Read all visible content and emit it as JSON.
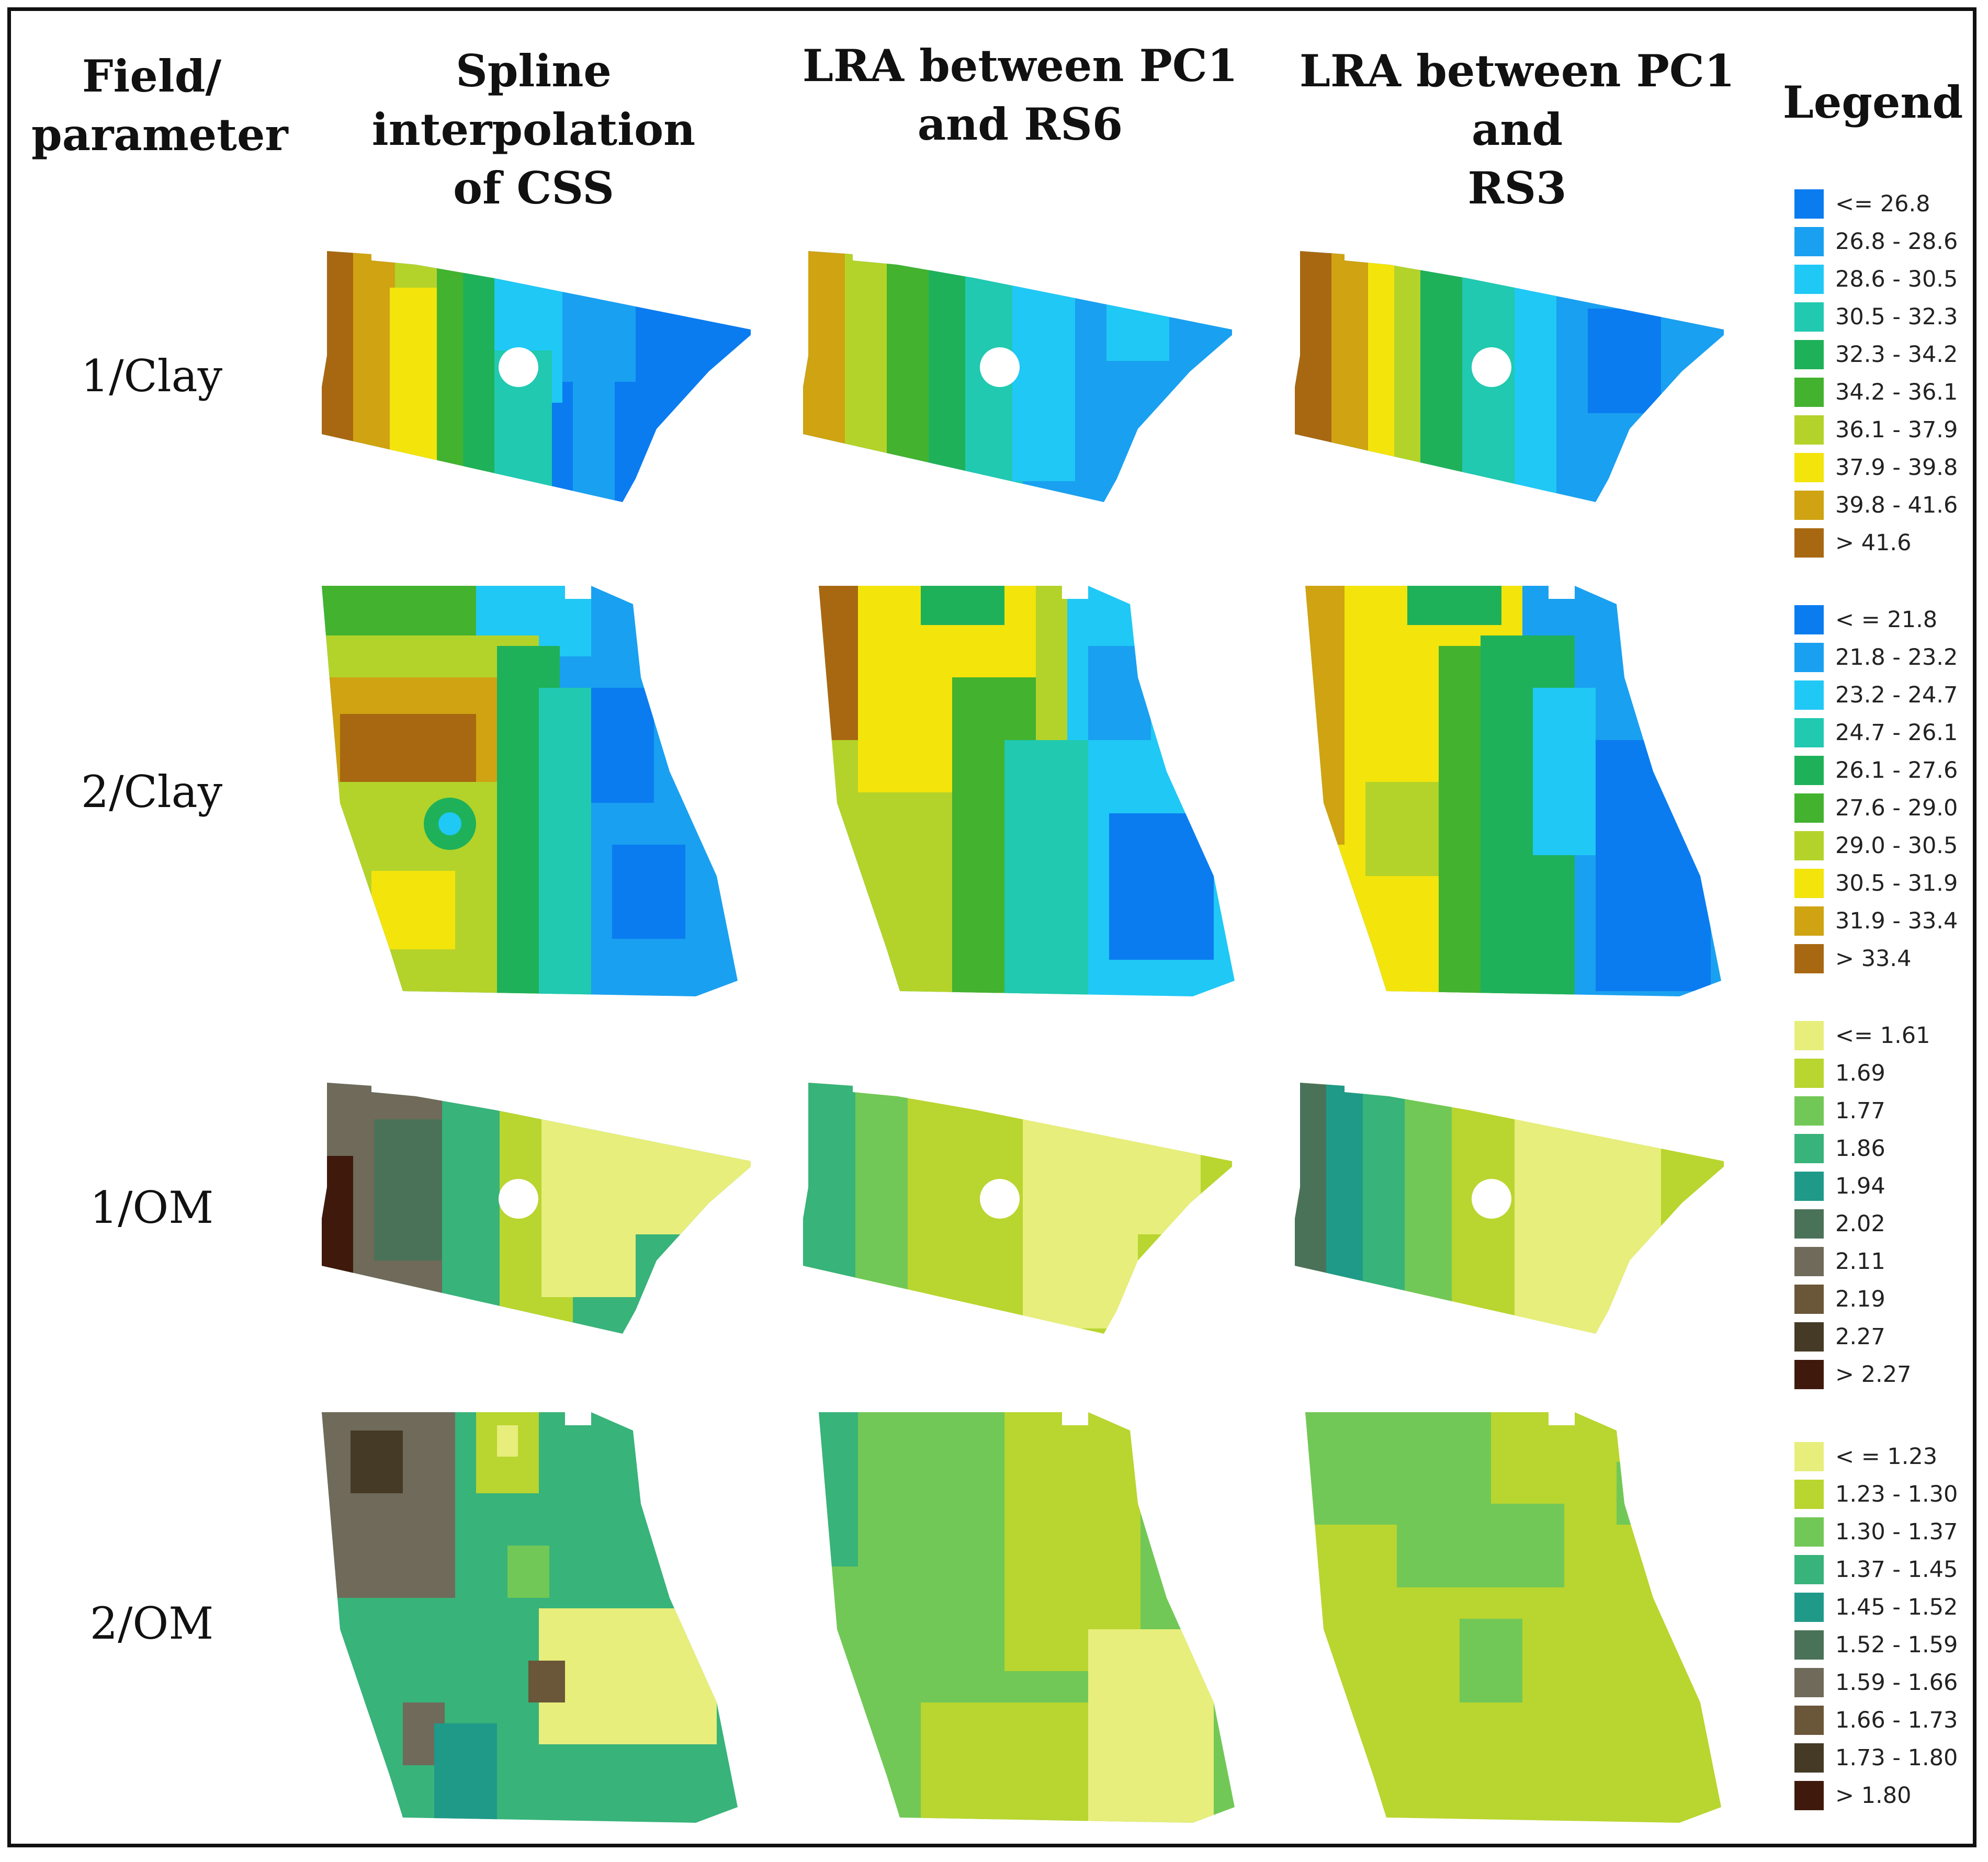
{
  "headers": {
    "field_param": [
      "Field/",
      "parameter"
    ],
    "col1": [
      "Spline interpolation",
      "of CSS"
    ],
    "col2": [
      "LRA between PC1",
      "and RS6"
    ],
    "col3": [
      "LRA between PC1 and",
      "RS3"
    ],
    "legend": "Legend"
  },
  "rows": [
    {
      "label": "1/Clay"
    },
    {
      "label": "2/Clay"
    },
    {
      "label": "1/OM"
    },
    {
      "label": "2/OM"
    }
  ],
  "palettes": {
    "clay": [
      "#0a7cf0",
      "#1aa0f0",
      "#20c8f5",
      "#20c9b0",
      "#1fb159",
      "#43b22f",
      "#b3d32a",
      "#f3e40c",
      "#cfa312",
      "#a86812"
    ],
    "om": [
      "#e7ee7b",
      "#b9d52f",
      "#71c856",
      "#38b37a",
      "#1f9a88",
      "#4a7258",
      "#6f6a5a",
      "#6a5638",
      "#443a26",
      "#3f1a0c"
    ]
  },
  "legends": [
    {
      "items": [
        "<= 26.8",
        "26.8 - 28.6",
        "28.6 - 30.5",
        "30.5 - 32.3",
        "32.3 - 34.2",
        "34.2 - 36.1",
        "36.1 - 37.9",
        "37.9 - 39.8",
        "39.8 - 41.6",
        "> 41.6"
      ]
    },
    {
      "items": [
        "< = 21.8",
        "21.8 - 23.2",
        "23.2 - 24.7",
        "24.7 - 26.1",
        "26.1 - 27.6",
        "27.6 - 29.0",
        "29.0 - 30.5",
        "30.5 - 31.9",
        "31.9 - 33.4",
        "> 33.4"
      ]
    },
    {
      "items": [
        "<= 1.61",
        "1.69",
        "1.77",
        "1.86",
        "1.94",
        "2.02",
        "2.11",
        "2.19",
        "2.27",
        "> 2.27"
      ]
    },
    {
      "items": [
        "< = 1.23",
        "1.23 - 1.30",
        "1.30 - 1.37",
        "1.37 - 1.45",
        "1.45 - 1.52",
        "1.52 - 1.59",
        "1.59 - 1.66",
        "1.66 - 1.73",
        "1.73 - 1.80",
        "> 1.80"
      ]
    }
  ]
}
